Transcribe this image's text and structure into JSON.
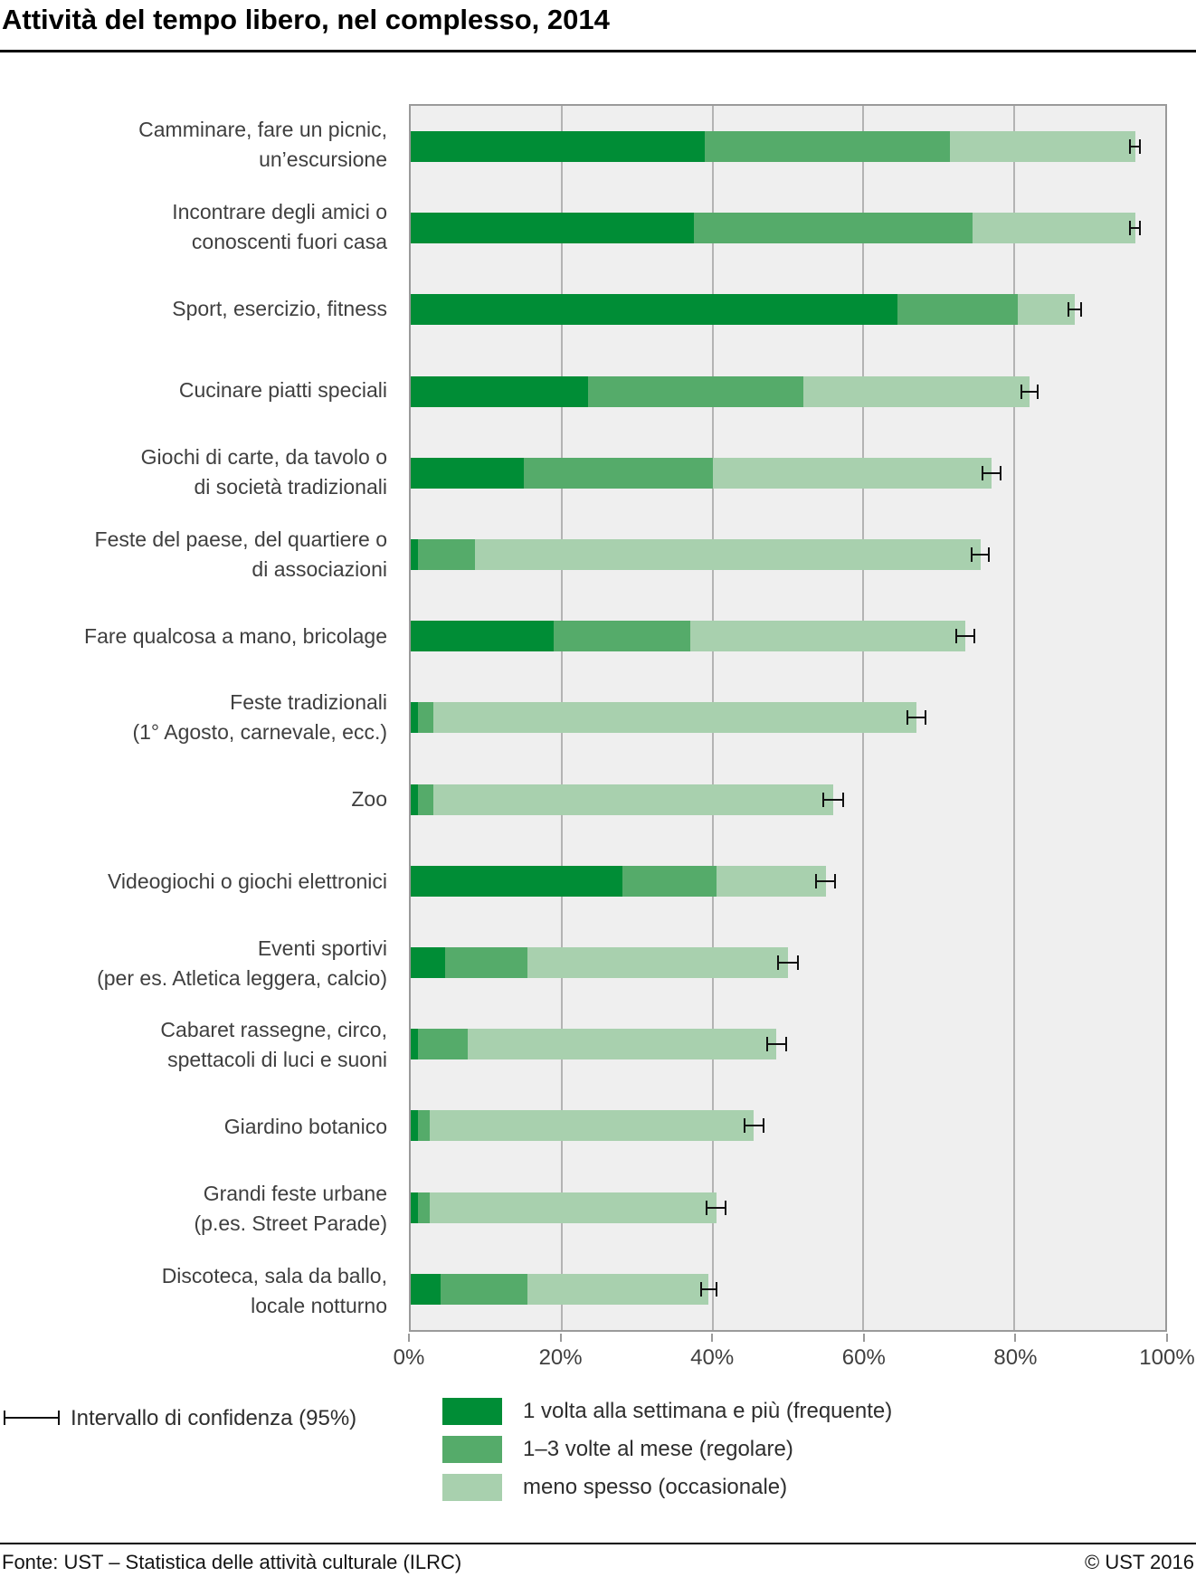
{
  "header": {
    "title": "Attività del tempo libero, nel complesso, 2014"
  },
  "colors": {
    "frequente": "#008d36",
    "regolare": "#55ab6a",
    "occasionale": "#a8d0ae",
    "plot_background": "#efefef",
    "gridline": "#b3b3b3",
    "plot_border": "#9a9a9a",
    "confidence_interval": "#111111"
  },
  "chart_data": {
    "type": "bar",
    "orientation": "horizontal",
    "stacked": true,
    "unit": "percent",
    "xlim": [
      0,
      100
    ],
    "grid": "vertical",
    "gridlines_pct": [
      20,
      40,
      60,
      80
    ],
    "x_ticks": [
      {
        "pct": 0,
        "label": "0%"
      },
      {
        "pct": 20,
        "label": "20%"
      },
      {
        "pct": 40,
        "label": "40%"
      },
      {
        "pct": 60,
        "label": "60%"
      },
      {
        "pct": 80,
        "label": "80%"
      },
      {
        "pct": 100,
        "label": "100%"
      }
    ],
    "legend_position": "bottom",
    "ci_legend_label": "Intervallo di confidenza (95%)",
    "legend": [
      {
        "key": "frequente",
        "label": "1 volta alla settimana e più (frequente)"
      },
      {
        "key": "regolare",
        "label": "1–3 volte al mese (regolare)"
      },
      {
        "key": "occasionale",
        "label": "meno spesso (occasionale)"
      }
    ],
    "rows": [
      {
        "label": "Camminare, fare un picnic, un’escursione",
        "label_lines": [
          "Camminare, fare un picnic,",
          "un’escursione"
        ],
        "frequente": 39.0,
        "regolare": 32.5,
        "occasionale": 24.5,
        "total": 96.0,
        "ci": 0.8
      },
      {
        "label": "Incontrare degli amici o conoscenti fuori casa",
        "label_lines": [
          "Incontrare degli amici o",
          "conoscenti fuori casa"
        ],
        "frequente": 37.5,
        "regolare": 37.0,
        "occasionale": 21.5,
        "total": 96.0,
        "ci": 0.8
      },
      {
        "label": "Sport, esercizio, fitness",
        "label_lines": [
          "Sport, esercizio, fitness"
        ],
        "frequente": 64.5,
        "regolare": 16.0,
        "occasionale": 7.5,
        "total": 88.0,
        "ci": 1.0
      },
      {
        "label": "Cucinare piatti speciali",
        "label_lines": [
          "Cucinare piatti speciali"
        ],
        "frequente": 23.5,
        "regolare": 28.5,
        "occasionale": 30.0,
        "total": 82.0,
        "ci": 1.2
      },
      {
        "label": "Giochi di carte, da tavolo o di società tradizionali",
        "label_lines": [
          "Giochi di carte, da tavolo o",
          "di società tradizionali"
        ],
        "frequente": 15.0,
        "regolare": 25.0,
        "occasionale": 37.0,
        "total": 77.0,
        "ci": 1.3
      },
      {
        "label": "Feste del paese, del quartiere o di associazioni",
        "label_lines": [
          "Feste del paese, del quartiere o",
          "di associazioni"
        ],
        "frequente": 1.0,
        "regolare": 7.5,
        "occasionale": 67.0,
        "total": 75.5,
        "ci": 1.3
      },
      {
        "label": "Fare qualcosa a mano, bricolage",
        "label_lines": [
          "Fare qualcosa a mano, bricolage"
        ],
        "frequente": 19.0,
        "regolare": 18.0,
        "occasionale": 36.5,
        "total": 73.5,
        "ci": 1.3
      },
      {
        "label": "Feste tradizionali (1° Agosto, carnevale, ecc.)",
        "label_lines": [
          "Feste tradizionali",
          "(1° Agosto, carnevale, ecc.)"
        ],
        "frequente": 1.0,
        "regolare": 2.0,
        "occasionale": 64.0,
        "total": 67.0,
        "ci": 1.3
      },
      {
        "label": "Zoo",
        "label_lines": [
          "Zoo"
        ],
        "frequente": 1.0,
        "regolare": 2.0,
        "occasionale": 53.0,
        "total": 56.0,
        "ci": 1.4
      },
      {
        "label": "Videogiochi o giochi elettronici",
        "label_lines": [
          "Videogiochi o giochi elettronici"
        ],
        "frequente": 28.0,
        "regolare": 12.5,
        "occasionale": 14.5,
        "total": 55.0,
        "ci": 1.4
      },
      {
        "label": "Eventi sportivi (per es. Atletica leggera, calcio)",
        "label_lines": [
          "Eventi sportivi",
          "(per es. Atletica leggera, calcio)"
        ],
        "frequente": 4.5,
        "regolare": 11.0,
        "occasionale": 34.5,
        "total": 50.0,
        "ci": 1.4
      },
      {
        "label": "Cabaret rassegne, circo, spettacoli di luci e suoni",
        "label_lines": [
          "Cabaret rassegne, circo,",
          "spettacoli di luci e suoni"
        ],
        "frequente": 1.0,
        "regolare": 6.5,
        "occasionale": 41.0,
        "total": 48.5,
        "ci": 1.4
      },
      {
        "label": "Giardino botanico",
        "label_lines": [
          "Giardino botanico"
        ],
        "frequente": 1.0,
        "regolare": 1.5,
        "occasionale": 43.0,
        "total": 45.5,
        "ci": 1.4
      },
      {
        "label": "Grandi feste urbane (p.es. Street Parade)",
        "label_lines": [
          "Grandi feste urbane",
          "(p.es. Street Parade)"
        ],
        "frequente": 1.0,
        "regolare": 1.5,
        "occasionale": 38.0,
        "total": 40.5,
        "ci": 1.4
      },
      {
        "label": "Discoteca, sala da ballo, locale notturno",
        "label_lines": [
          "Discoteca, sala da ballo,",
          "locale notturno"
        ],
        "frequente": 4.0,
        "regolare": 11.5,
        "occasionale": 24.0,
        "total": 39.5,
        "ci": 1.1
      }
    ]
  },
  "footer": {
    "source": "Fonte: UST – Statistica delle attività culturale (ILRC)",
    "copyright": "© UST 2016"
  }
}
